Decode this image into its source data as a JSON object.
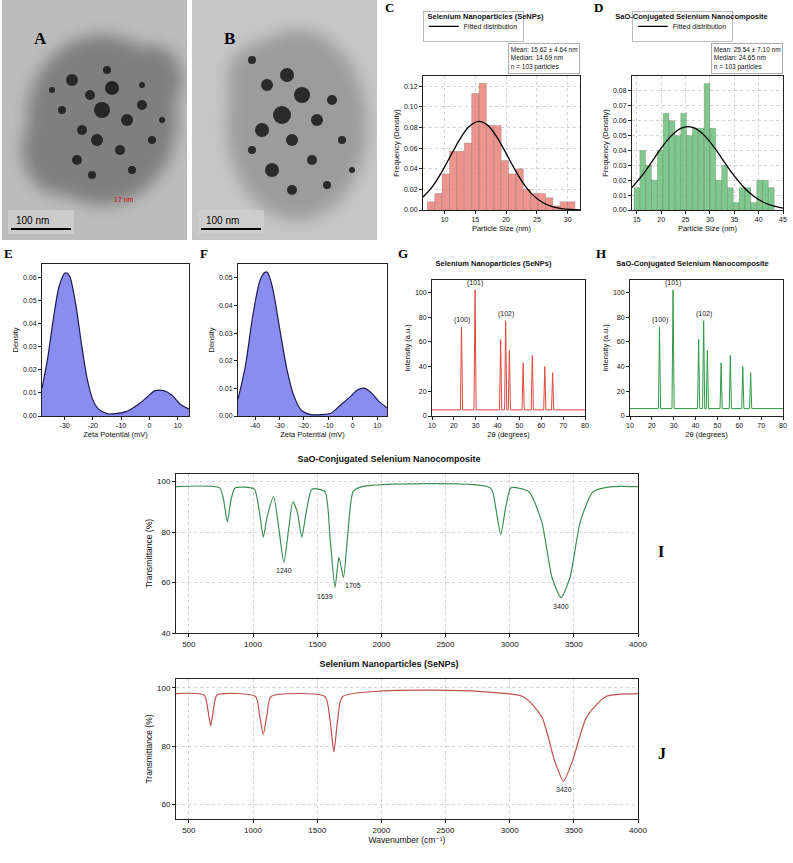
{
  "images": [
    {
      "panel": "A",
      "scale_bar": "100 nm",
      "labels": [
        "17 nm"
      ]
    },
    {
      "panel": "B",
      "scale_bar": "100 nm"
    }
  ],
  "chart_data": [
    {
      "panel": "C",
      "type": "histogram",
      "title": "Selenium Nanoparticles (SeNPs)",
      "x_label": "Particle Size (nm)",
      "y_label": "Frequency (Density)",
      "bins": [
        7.2,
        8.4,
        9.6,
        10.8,
        12.0,
        13.2,
        14.4,
        15.6,
        16.8,
        18.0,
        19.2,
        20.4,
        21.6,
        22.8,
        24.0,
        25.2,
        26.4,
        27.6,
        28.8,
        30.0,
        31.2
      ],
      "values": [
        0.008,
        0.016,
        0.035,
        0.057,
        0.057,
        0.065,
        0.113,
        0.123,
        0.082,
        0.082,
        0.048,
        0.035,
        0.04,
        0.02,
        0.016,
        0.016,
        0.012,
        0.004,
        0.008,
        0.008
      ],
      "color": "#e9837b",
      "series": [
        {
          "name": "Fitted distribution",
          "type": "line",
          "color": "#000000",
          "x": [
            6.5,
            8,
            9.5,
            11,
            12.5,
            14,
            15.6,
            17,
            18.5,
            20,
            21.5,
            23,
            24.5,
            26,
            27.5,
            29,
            30.5,
            32
          ],
          "values": [
            0.0126,
            0.0225,
            0.0364,
            0.0527,
            0.0688,
            0.081,
            0.086,
            0.0822,
            0.0708,
            0.0549,
            0.0384,
            0.0242,
            0.0137,
            0.007,
            0.0032,
            0.0013,
            0.0005,
            0.0002
          ]
        }
      ],
      "annotations": [
        {
          "lines": [
            "Mean: 15.62 ± 4.64 nm",
            "Median: 14.69 nm",
            "n = 103 particles"
          ]
        }
      ],
      "xlim": [
        6.5,
        32
      ],
      "xticks": [
        10,
        15,
        20,
        25,
        30
      ],
      "ylim": [
        0,
        0.13
      ],
      "yticks": [
        {
          "value": 0,
          "label": "0.00"
        },
        {
          "value": 0.02,
          "label": "0.02"
        },
        {
          "value": 0.04,
          "label": "0.04"
        },
        {
          "value": 0.06,
          "label": "0.06"
        },
        {
          "value": 0.08,
          "label": "0.08"
        },
        {
          "value": 0.1,
          "label": "0.10"
        },
        {
          "value": 0.12,
          "label": "0.12"
        }
      ],
      "grid": true,
      "legend": "above"
    },
    {
      "panel": "D",
      "type": "histogram",
      "title": "SaO-Conjugated Selenium Nanocomposite",
      "x_label": "Particle Size (nm)",
      "y_label": "Frequency (Density)",
      "bins": [
        14.4,
        15.6,
        16.8,
        18.0,
        19.2,
        20.4,
        21.6,
        22.8,
        24.0,
        25.2,
        26.4,
        27.6,
        28.8,
        30.0,
        31.2,
        32.4,
        33.6,
        34.8,
        36.0,
        37.2,
        38.4,
        39.6,
        40.8,
        42.0,
        43.2
      ],
      "values": [
        0.015,
        0.04,
        0.03,
        0.02,
        0.04,
        0.065,
        0.06,
        0.05,
        0.065,
        0.05,
        0.055,
        0.055,
        0.085,
        0.055,
        0.02,
        0.03,
        0.015,
        0.005,
        0.015,
        0.015,
        0.005,
        0.02,
        0.02,
        0.015
      ],
      "color": "#6cbf7c",
      "series": [
        {
          "name": "Fitted distribution",
          "type": "line",
          "color": "#000000",
          "x": [
            14,
            16,
            18,
            20,
            22,
            24,
            25.5,
            27,
            29,
            31,
            33,
            35,
            37,
            39,
            41,
            43,
            45
          ],
          "values": [
            0.0151,
            0.0229,
            0.032,
            0.0415,
            0.0496,
            0.0548,
            0.056,
            0.0548,
            0.0496,
            0.0415,
            0.032,
            0.0229,
            0.0151,
            0.0092,
            0.0052,
            0.0027,
            0.0013
          ]
        }
      ],
      "annotations": [
        {
          "lines": [
            "Mean: 25.54 ± 7.10 nm",
            "Median: 24.65 nm",
            "n = 103 particles"
          ]
        }
      ],
      "xlim": [
        14,
        45
      ],
      "xticks": [
        15,
        20,
        25,
        30,
        35,
        40,
        45
      ],
      "ylim": [
        0,
        0.09
      ],
      "yticks": [
        {
          "value": 0,
          "label": "0.00"
        },
        {
          "value": 0.01,
          "label": "0.01"
        },
        {
          "value": 0.02,
          "label": "0.02"
        },
        {
          "value": 0.03,
          "label": "0.03"
        },
        {
          "value": 0.04,
          "label": "0.04"
        },
        {
          "value": 0.05,
          "label": "0.05"
        },
        {
          "value": 0.06,
          "label": "0.06"
        },
        {
          "value": 0.07,
          "label": "0.07"
        },
        {
          "value": 0.08,
          "label": "0.08"
        }
      ],
      "grid": true,
      "legend": "above"
    },
    {
      "panel": "E",
      "type": "area",
      "x_label": "Zeta Potential (mV)",
      "y_label": "Density",
      "x": [
        -38,
        -36,
        -34,
        -32,
        -30,
        -29,
        -28,
        -26,
        -24,
        -22,
        -20,
        -18,
        -15,
        -12,
        -8,
        -4,
        -1,
        2,
        5,
        8,
        11,
        14
      ],
      "values": [
        0.012,
        0.025,
        0.042,
        0.056,
        0.062,
        0.062,
        0.06,
        0.048,
        0.031,
        0.016,
        0.007,
        0.003,
        0.001,
        0.001,
        0.002,
        0.005,
        0.008,
        0.011,
        0.011,
        0.009,
        0.005,
        0.003
      ],
      "color": "#8a8cf0",
      "xlim": [
        -38,
        14
      ],
      "xticks": [
        -30,
        -20,
        -10,
        0,
        10
      ],
      "ylim": [
        0,
        0.066
      ],
      "yticks": [
        {
          "value": 0,
          "label": "0.00"
        },
        {
          "value": 0.01,
          "label": "0.01"
        },
        {
          "value": 0.02,
          "label": "0.02"
        },
        {
          "value": 0.03,
          "label": "0.03"
        },
        {
          "value": 0.04,
          "label": "0.04"
        },
        {
          "value": 0.05,
          "label": "0.05"
        },
        {
          "value": 0.06,
          "label": "0.06"
        }
      ],
      "grid": false
    },
    {
      "panel": "F",
      "type": "area",
      "x_label": "Zeta Potential (mV)",
      "y_label": "Density",
      "x": [
        -47,
        -44,
        -41,
        -38,
        -36,
        -35,
        -33,
        -30,
        -27,
        -24,
        -21,
        -17,
        -13,
        -9,
        -5,
        -1,
        2,
        5,
        8,
        11,
        14
      ],
      "values": [
        0.006,
        0.018,
        0.036,
        0.049,
        0.052,
        0.052,
        0.047,
        0.032,
        0.017,
        0.007,
        0.002,
        0.0005,
        0.0005,
        0.001,
        0.004,
        0.007,
        0.0095,
        0.01,
        0.008,
        0.005,
        0.003
      ],
      "color": "#8a8cf0",
      "xlim": [
        -47,
        14
      ],
      "xticks": [
        -40,
        -30,
        -20,
        -10,
        0,
        10
      ],
      "ylim": [
        0,
        0.055
      ],
      "yticks": [
        {
          "value": 0,
          "label": "0.00"
        },
        {
          "value": 0.01,
          "label": "0.01"
        },
        {
          "value": 0.02,
          "label": "0.02"
        },
        {
          "value": 0.03,
          "label": "0.03"
        },
        {
          "value": 0.04,
          "label": "0.04"
        },
        {
          "value": 0.05,
          "label": "0.05"
        }
      ],
      "grid": false
    },
    {
      "panel": "G",
      "type": "line",
      "title": "Selenium Nanoparticles (SeNPs)",
      "x_label": "2θ (degrees)",
      "y_label": "Intensity (a.u.)",
      "x": [
        10,
        23.0,
        23.5,
        24.0,
        29.2,
        29.7,
        30.2,
        40.9,
        41.4,
        41.9,
        43.2,
        43.7,
        44.2,
        44.9,
        45.4,
        45.9,
        51.2,
        51.7,
        52.2,
        55.4,
        55.9,
        56.4,
        61.1,
        61.6,
        62.1,
        64.7,
        65.2,
        65.7,
        80
      ],
      "values": [
        5,
        5,
        72,
        5,
        5,
        102,
        5,
        5,
        62,
        5,
        5,
        77,
        5,
        5,
        53,
        5,
        5,
        43,
        5,
        5,
        49,
        5,
        5,
        40,
        5,
        5,
        35,
        5,
        5
      ],
      "color": "#e0483d",
      "annotations": [
        {
          "x": 23.5,
          "y": 72,
          "text": "(100)"
        },
        {
          "x": 29.7,
          "y": 102,
          "text": "(101)"
        },
        {
          "x": 43.7,
          "y": 77,
          "text": "(102)"
        }
      ],
      "xlim": [
        10,
        80
      ],
      "xticks": [
        10,
        20,
        30,
        40,
        50,
        60,
        70,
        80
      ],
      "ylim": [
        0,
        110
      ],
      "yticks": [
        0,
        20,
        40,
        60,
        80,
        100
      ],
      "grid": false
    },
    {
      "panel": "H",
      "type": "line",
      "title": "SaO-Conjugated Selenium Nanocomposite",
      "x_label": "2θ (degrees)",
      "y_label": "Intensity (a.u.)",
      "x": [
        10,
        23.0,
        23.5,
        24.0,
        29.2,
        29.7,
        30.2,
        40.9,
        41.4,
        41.9,
        43.2,
        43.7,
        44.2,
        44.9,
        45.4,
        45.9,
        51.2,
        51.7,
        52.2,
        55.4,
        55.9,
        56.4,
        61.1,
        61.6,
        62.1,
        64.7,
        65.2,
        65.7,
        80
      ],
      "values": [
        6,
        6,
        72,
        6,
        6,
        102,
        6,
        6,
        62,
        6,
        6,
        77,
        6,
        6,
        53,
        6,
        6,
        43,
        6,
        6,
        49,
        6,
        6,
        40,
        6,
        6,
        35,
        6,
        6
      ],
      "color": "#2f9a45",
      "annotations": [
        {
          "x": 23.5,
          "y": 72,
          "text": "(100)"
        },
        {
          "x": 29.7,
          "y": 102,
          "text": "(101)"
        },
        {
          "x": 43.7,
          "y": 77,
          "text": "(102)"
        }
      ],
      "xlim": [
        10,
        80
      ],
      "xticks": [
        10,
        20,
        30,
        40,
        50,
        60,
        70,
        80
      ],
      "ylim": [
        0,
        110
      ],
      "yticks": [
        0,
        20,
        40,
        60,
        80,
        100
      ],
      "grid": false
    },
    {
      "panel": "I",
      "type": "line",
      "title": "SaO-Conjugated Selenium Nanocomposite",
      "y_label": "Transmittance (%)",
      "x": [
        400,
        740,
        770,
        800,
        830,
        860,
        1010,
        1050,
        1080,
        1110,
        1160,
        1200,
        1240,
        1280,
        1310,
        1345,
        1380,
        1415,
        1460,
        1560,
        1600,
        1639,
        1670,
        1705,
        1740,
        1780,
        1850,
        2850,
        2890,
        2930,
        2970,
        3010,
        3150,
        3250,
        3330,
        3400,
        3470,
        3550,
        3650,
        3800,
        4000
      ],
      "values": [
        98,
        97.5,
        93,
        84,
        93,
        97.5,
        97,
        88,
        78,
        86,
        94,
        82,
        68,
        82,
        92,
        88,
        78,
        88,
        97,
        96,
        78,
        58,
        70,
        62,
        80,
        96,
        98,
        97.5,
        90,
        79,
        90,
        97.5,
        96,
        84,
        62,
        54,
        62,
        84,
        96,
        98,
        98
      ],
      "color": "#3d8f55",
      "annotations": [
        {
          "x": 1240,
          "y": 68,
          "text": "1240"
        },
        {
          "x": 1639,
          "y": 58,
          "text": "1639"
        },
        {
          "x": 1705,
          "y": 62,
          "text": "1705"
        },
        {
          "x": 3400,
          "y": 54,
          "text": "3400"
        }
      ],
      "xlim": [
        400,
        4000
      ],
      "xticks": [
        500,
        1000,
        1500,
        2000,
        2500,
        3000,
        3500,
        4000
      ],
      "ylim": [
        40,
        103
      ],
      "yticks": [
        40,
        60,
        80,
        100
      ],
      "grid": true
    },
    {
      "panel": "J",
      "type": "line",
      "title": "Selenium Nanoparticles (SeNPs)",
      "x_label": "Wavenumber (cm⁻¹)",
      "y_label": "Transmittance (%)",
      "x": [
        400,
        620,
        650,
        670,
        690,
        720,
        1020,
        1050,
        1080,
        1110,
        1140,
        1560,
        1600,
        1630,
        1660,
        1700,
        3100,
        3250,
        3350,
        3420,
        3490,
        3600,
        3750,
        4000
      ],
      "values": [
        98,
        97.5,
        92,
        87,
        92,
        97.5,
        97,
        91,
        84,
        91,
        97,
        97,
        89,
        78,
        89,
        97,
        97,
        90,
        75,
        68,
        75,
        90,
        97,
        98
      ],
      "color": "#c0504d",
      "annotations": [
        {
          "x": 3420,
          "y": 68,
          "text": "3420"
        }
      ],
      "xlim": [
        400,
        4000
      ],
      "xticks": [
        500,
        1000,
        1500,
        2000,
        2500,
        3000,
        3500,
        4000
      ],
      "ylim": [
        55,
        103
      ],
      "yticks": [
        60,
        80,
        100
      ],
      "grid": true
    }
  ]
}
